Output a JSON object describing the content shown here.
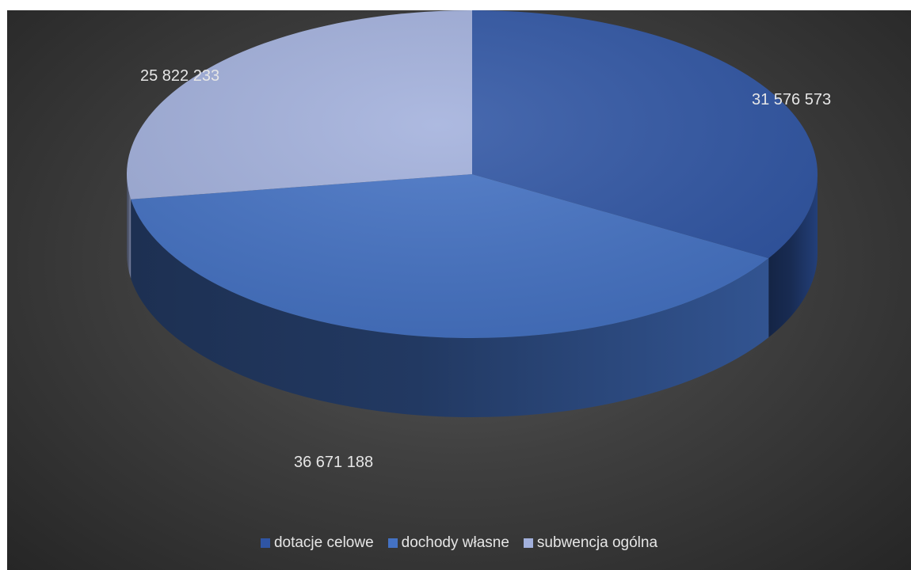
{
  "chart_data": {
    "type": "pie",
    "variant": "3d",
    "title": "",
    "categories": [
      "dotacje celowe",
      "dochody własne",
      "subwencja ogólna"
    ],
    "values": [
      31576573,
      36671188,
      25822233
    ],
    "value_labels": [
      "31 576 573",
      "36 671 188",
      "25 822 233"
    ],
    "colors": [
      "#2f55a4",
      "#4472c4",
      "#a2b0dc"
    ],
    "legend_position": "bottom",
    "start_angle": "12 o'clock, clockwise"
  }
}
